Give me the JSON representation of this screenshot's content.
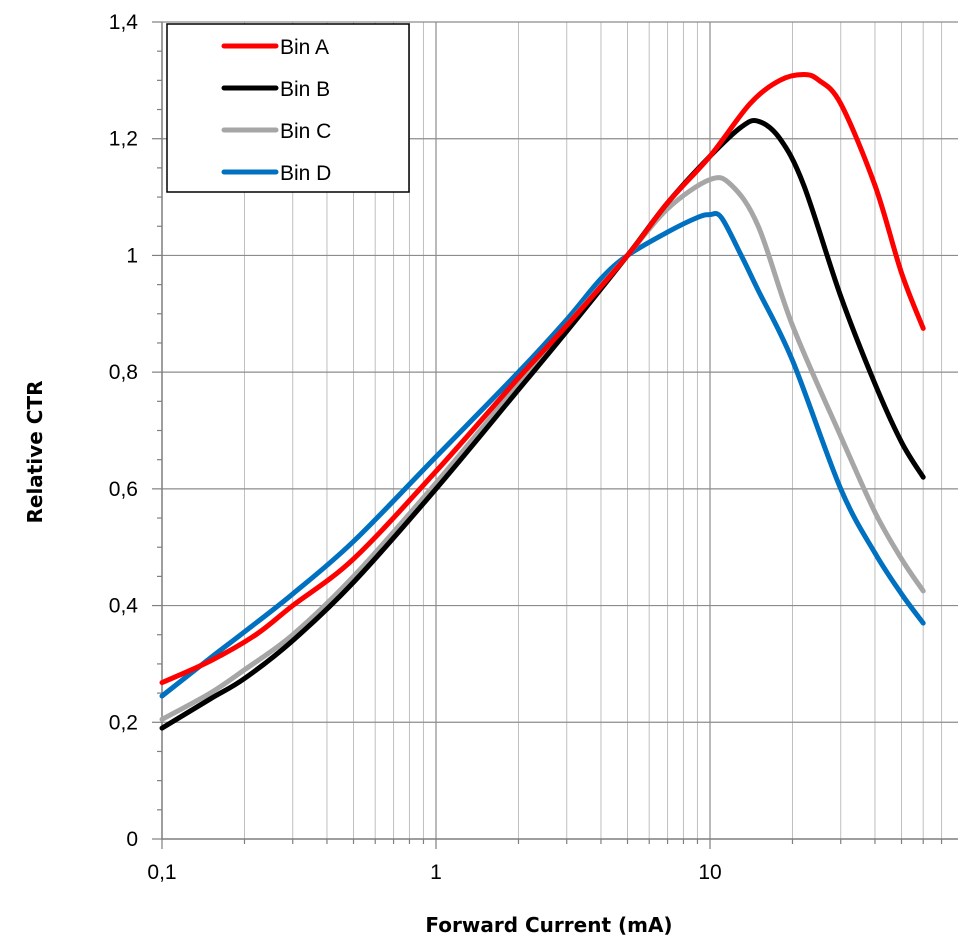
{
  "chart_data": {
    "type": "line",
    "xlabel": "Forward Current (mA)",
    "ylabel": "Relative CTR",
    "x_scale": "log",
    "xlim": [
      0.1,
      70
    ],
    "ylim": [
      0,
      1.4
    ],
    "x_ticks": [
      0.1,
      1,
      10
    ],
    "x_tick_labels": [
      "0,1",
      "1",
      "10"
    ],
    "y_ticks": [
      0,
      0.2,
      0.4,
      0.6,
      0.8,
      1,
      1.2,
      1.4
    ],
    "y_tick_labels": [
      "0",
      "0,2",
      "0,4",
      "0,6",
      "0,8",
      "1",
      "1,2",
      "1,4"
    ],
    "grid": true,
    "legend_position": "top-left",
    "series": [
      {
        "name": "Bin A",
        "color": "#ff0000",
        "x": [
          0.1,
          0.15,
          0.22,
          0.3,
          0.5,
          1,
          2,
          3,
          5,
          7,
          10,
          14,
          18,
          22,
          25,
          30,
          40,
          50,
          60
        ],
        "y": [
          0.268,
          0.305,
          0.35,
          0.4,
          0.48,
          0.63,
          0.79,
          0.88,
          1.0,
          1.09,
          1.17,
          1.26,
          1.3,
          1.31,
          1.3,
          1.26,
          1.12,
          0.97,
          0.875
        ]
      },
      {
        "name": "Bin B",
        "color": "#000000",
        "x": [
          0.1,
          0.15,
          0.2,
          0.3,
          0.5,
          1,
          2,
          3,
          5,
          7,
          10,
          13,
          15,
          18,
          22,
          30,
          40,
          50,
          60
        ],
        "y": [
          0.19,
          0.24,
          0.275,
          0.34,
          0.44,
          0.6,
          0.77,
          0.87,
          1.0,
          1.09,
          1.17,
          1.22,
          1.23,
          1.2,
          1.12,
          0.93,
          0.78,
          0.68,
          0.62
        ]
      },
      {
        "name": "Bin C",
        "color": "#a6a6a6",
        "x": [
          0.1,
          0.15,
          0.2,
          0.3,
          0.5,
          1,
          2,
          3,
          5,
          7,
          10,
          12,
          15,
          20,
          30,
          40,
          50,
          60
        ],
        "y": [
          0.205,
          0.25,
          0.29,
          0.35,
          0.45,
          0.61,
          0.78,
          0.88,
          1.0,
          1.08,
          1.13,
          1.12,
          1.05,
          0.88,
          0.69,
          0.56,
          0.48,
          0.425
        ]
      },
      {
        "name": "Bin D",
        "color": "#0070c0",
        "x": [
          0.1,
          0.15,
          0.2,
          0.3,
          0.5,
          1,
          2,
          3,
          4,
          5,
          7,
          9,
          10,
          11,
          13,
          15,
          20,
          30,
          40,
          50,
          60
        ],
        "y": [
          0.245,
          0.31,
          0.355,
          0.42,
          0.51,
          0.655,
          0.8,
          0.89,
          0.96,
          1.0,
          1.04,
          1.065,
          1.07,
          1.065,
          1.0,
          0.94,
          0.82,
          0.6,
          0.49,
          0.42,
          0.37
        ]
      }
    ]
  }
}
